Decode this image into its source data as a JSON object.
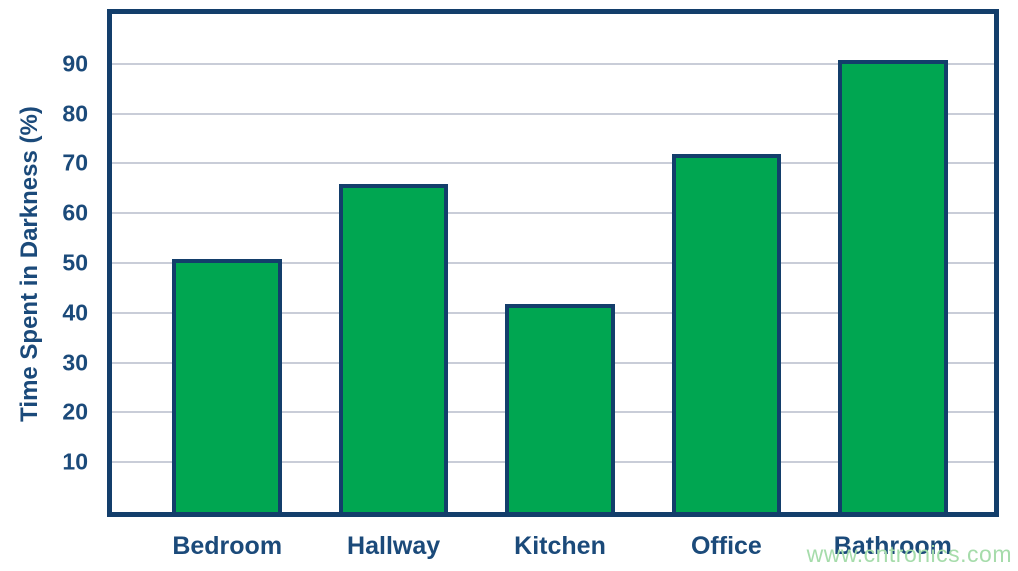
{
  "chart_data": {
    "type": "bar",
    "categories": [
      "Bedroom",
      "Hallway",
      "Kitchen",
      "Office",
      "Bathroom"
    ],
    "values": [
      50,
      65,
      41,
      71,
      90
    ],
    "title": "",
    "xlabel": "",
    "ylabel": "Time Spent in Darkness (%)",
    "ylim": [
      0,
      100
    ],
    "yticks": [
      10,
      20,
      30,
      40,
      50,
      60,
      70,
      80,
      90
    ],
    "grid": true,
    "legend": "none",
    "colors": {
      "bar_fill": "#00a651",
      "bar_border": "#133e6b",
      "axis_frame": "#133e6b",
      "label_text": "#1b4a7a",
      "gridline": "#c9cdd8",
      "background": "#ffffff"
    }
  },
  "watermark": {
    "text": "www.cntronics.com",
    "color": "#a6dcab"
  }
}
